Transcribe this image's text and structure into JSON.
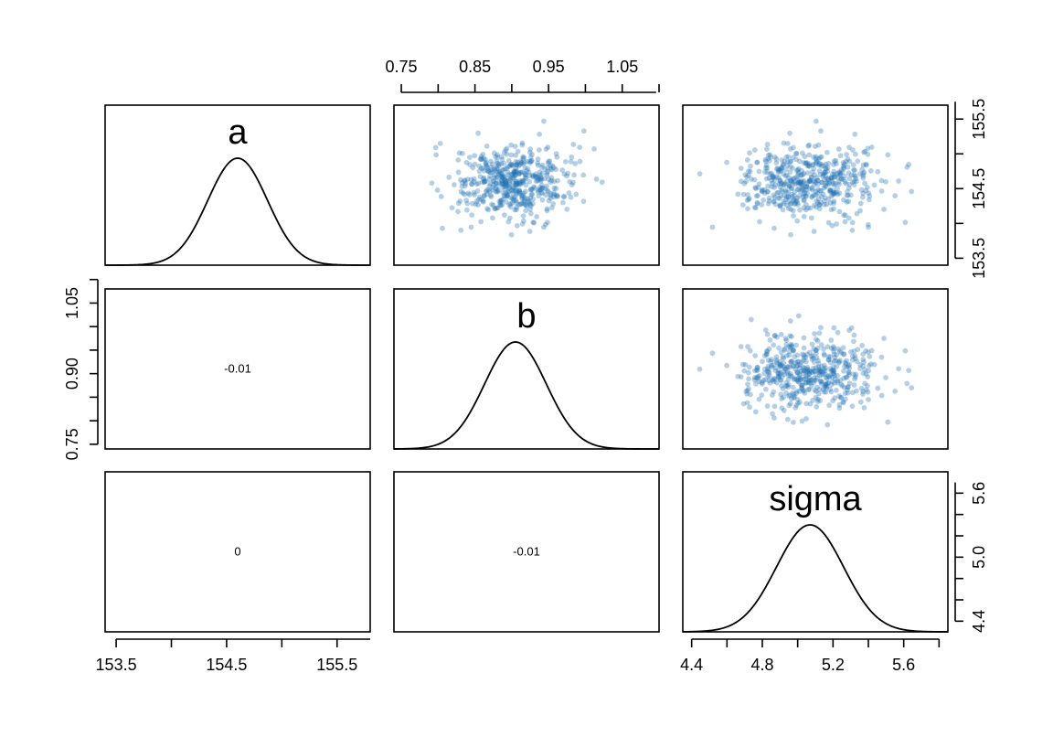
{
  "chart_data": {
    "type": "scatter",
    "layout": "pairs-matrix",
    "variables": [
      "a",
      "b",
      "sigma"
    ],
    "densities": {
      "a": {
        "mean": 154.6,
        "sd": 0.27,
        "xlim": [
          153.4,
          155.8
        ]
      },
      "b": {
        "mean": 0.905,
        "sd": 0.042,
        "xlim": [
          0.74,
          1.1
        ]
      },
      "sigma": {
        "mean": 5.07,
        "sd": 0.19,
        "xlim": [
          4.35,
          5.85
        ]
      }
    },
    "correlations": [
      {
        "row": "b",
        "col": "a",
        "value": "-0.01"
      },
      {
        "row": "sigma",
        "col": "a",
        "value": "0"
      },
      {
        "row": "sigma",
        "col": "b",
        "value": "-0.01"
      }
    ],
    "scatter_panels": [
      {
        "x": "b",
        "y": "a",
        "xlim": [
          0.74,
          1.1
        ],
        "ylim": [
          153.4,
          155.7
        ]
      },
      {
        "x": "sigma",
        "y": "a",
        "xlim": [
          4.35,
          5.85
        ],
        "ylim": [
          153.4,
          155.7
        ]
      },
      {
        "x": "sigma",
        "y": "b",
        "xlim": [
          4.35,
          5.85
        ],
        "ylim": [
          0.74,
          1.08
        ]
      }
    ],
    "axes": {
      "a_x_ticks": [
        "153.5",
        "154.5",
        "155.5"
      ],
      "b_x_ticks": [
        "0.75",
        "0.85",
        "0.95",
        "1.05"
      ],
      "sigma_x_ticks": [
        "4.4",
        "4.8",
        "5.2",
        "5.6"
      ],
      "a_y_ticks": [
        "153.5",
        "154.5",
        "155.5"
      ],
      "b_y_ticks": [
        "0.75",
        "0.90",
        "1.05"
      ],
      "sigma_y_ticks": [
        "4.4",
        "5.0",
        "5.6"
      ]
    },
    "point_color": "#1f6fb4",
    "n_samples": 500,
    "grid": false
  }
}
